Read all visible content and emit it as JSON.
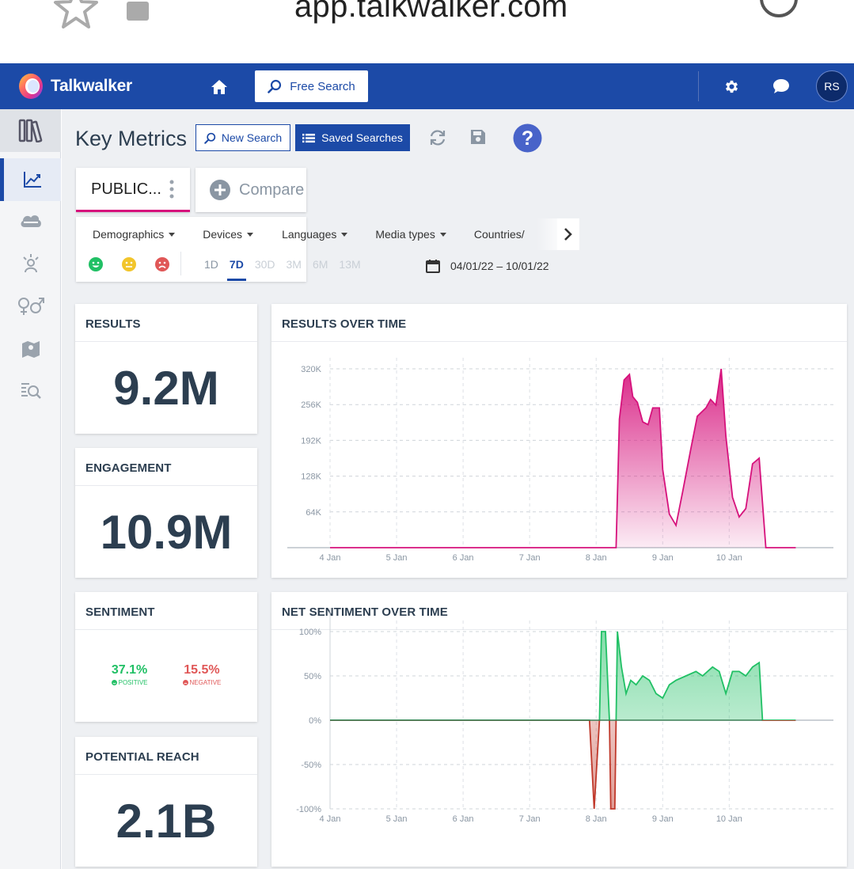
{
  "browser": {
    "url": "app.talkwalker.com"
  },
  "header": {
    "logo_text": "Talkwalker",
    "free_search_label": "Free Search",
    "avatar_initials": "RS"
  },
  "sidebar": {
    "items": [
      "library-icon",
      "chart-icon",
      "cloud-icon",
      "influencer-icon",
      "gender-icon",
      "map-icon",
      "themes-icon"
    ]
  },
  "toolbar": {
    "title": "Key Metrics",
    "new_search_label": "New Search",
    "saved_searches_label": "Saved Searches"
  },
  "tabs": {
    "query_label": "PUBLIC...",
    "compare_label": "Compare"
  },
  "filters": {
    "items": [
      "Demographics",
      "Devices",
      "Languages",
      "Media types",
      "Countries/"
    ],
    "ranges": [
      "1D",
      "7D",
      "30D",
      "3M",
      "6M",
      "13M"
    ],
    "active_range": "7D",
    "date_range": "04/01/22 – 10/01/22"
  },
  "cards": {
    "results": {
      "title": "RESULTS",
      "value": "9.2M"
    },
    "engagement": {
      "title": "ENGAGEMENT",
      "value": "10.9M"
    },
    "sentiment": {
      "title": "SENTIMENT",
      "positive_value": "37.1%",
      "positive_label": "POSITIVE",
      "negative_value": "15.5%",
      "negative_label": "NEGATIVE"
    },
    "reach": {
      "title": "POTENTIAL REACH",
      "value": "2.1B"
    }
  },
  "colors": {
    "brand": "#1c4aa7",
    "results_line": "#d6127c",
    "positive": "#21c065",
    "negative": "#c0392b"
  },
  "chart_data": [
    {
      "type": "area",
      "title": "RESULTS OVER TIME",
      "x_ticks": [
        "4 Jan",
        "5 Jan",
        "6 Jan",
        "7 Jan",
        "8 Jan",
        "9 Jan",
        "10 Jan"
      ],
      "y_ticks": [
        "64K",
        "128K",
        "192K",
        "256K",
        "320K"
      ],
      "ylim": [
        0,
        320000
      ],
      "x_range": [
        4,
        11.15
      ],
      "points": [
        [
          4.0,
          0
        ],
        [
          7.2,
          0
        ],
        [
          8.3,
          0
        ],
        [
          8.35,
          230000
        ],
        [
          8.42,
          300000
        ],
        [
          8.5,
          310000
        ],
        [
          8.55,
          270000
        ],
        [
          8.62,
          260000
        ],
        [
          8.7,
          225000
        ],
        [
          8.78,
          220000
        ],
        [
          8.85,
          250000
        ],
        [
          8.95,
          250000
        ],
        [
          9.0,
          140000
        ],
        [
          9.1,
          60000
        ],
        [
          9.2,
          40000
        ],
        [
          9.3,
          100000
        ],
        [
          9.42,
          175000
        ],
        [
          9.52,
          235000
        ],
        [
          9.65,
          250000
        ],
        [
          9.72,
          265000
        ],
        [
          9.8,
          255000
        ],
        [
          9.88,
          320000
        ],
        [
          9.95,
          200000
        ],
        [
          10.05,
          90000
        ],
        [
          10.15,
          55000
        ],
        [
          10.25,
          70000
        ],
        [
          10.35,
          150000
        ],
        [
          10.45,
          160000
        ],
        [
          10.55,
          0
        ],
        [
          11.0,
          0
        ]
      ]
    },
    {
      "type": "area",
      "title": "NET SENTIMENT OVER TIME",
      "x_ticks": [
        "4 Jan",
        "5 Jan",
        "6 Jan",
        "7 Jan",
        "8 Jan",
        "9 Jan",
        "10 Jan"
      ],
      "y_ticks": [
        "100%",
        "50%",
        "0%",
        "-50%",
        "-100%"
      ],
      "ylim": [
        -100,
        100
      ],
      "x_range": [
        4,
        11.15
      ],
      "points": [
        [
          4.0,
          0
        ],
        [
          7.9,
          0
        ],
        [
          7.97,
          -100
        ],
        [
          8.05,
          0
        ],
        [
          8.08,
          100
        ],
        [
          8.14,
          100
        ],
        [
          8.2,
          0
        ],
        [
          8.22,
          -100
        ],
        [
          8.28,
          -100
        ],
        [
          8.3,
          0
        ],
        [
          8.32,
          100
        ],
        [
          8.38,
          60
        ],
        [
          8.45,
          30
        ],
        [
          8.52,
          45
        ],
        [
          8.6,
          40
        ],
        [
          8.7,
          50
        ],
        [
          8.8,
          45
        ],
        [
          8.9,
          30
        ],
        [
          9.0,
          25
        ],
        [
          9.1,
          40
        ],
        [
          9.2,
          45
        ],
        [
          9.35,
          50
        ],
        [
          9.5,
          55
        ],
        [
          9.6,
          50
        ],
        [
          9.75,
          60
        ],
        [
          9.85,
          55
        ],
        [
          9.95,
          30
        ],
        [
          10.05,
          55
        ],
        [
          10.15,
          55
        ],
        [
          10.25,
          50
        ],
        [
          10.35,
          60
        ],
        [
          10.45,
          65
        ],
        [
          10.5,
          0
        ],
        [
          11.0,
          0
        ]
      ]
    }
  ]
}
